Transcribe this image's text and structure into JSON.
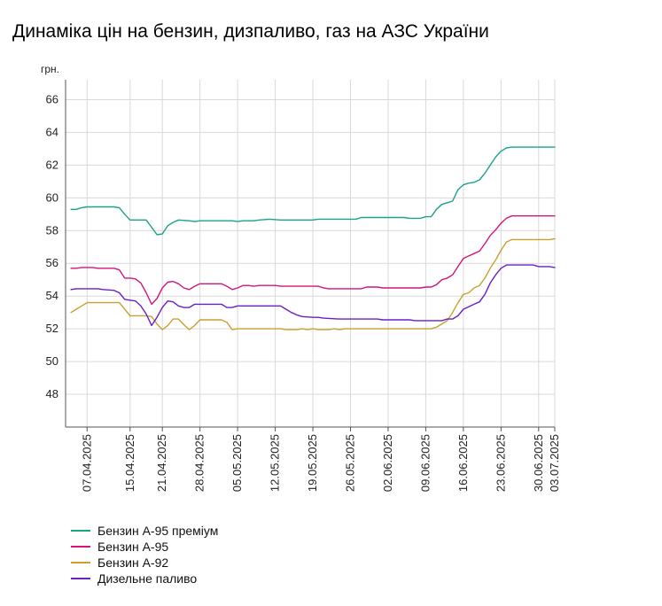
{
  "chart_data": {
    "type": "line",
    "title": "Динаміка цін на бензин, дизпаливо, газ на АЗС України",
    "ylabel": "грн.",
    "xlabel": "",
    "ylim": [
      46,
      67
    ],
    "yticks": [
      48,
      50,
      52,
      54,
      56,
      58,
      60,
      62,
      64,
      66
    ],
    "x_range": [
      "2025-04-03",
      "2025-07-03"
    ],
    "xtick_labels": [
      "07.04.2025",
      "15.04.2025",
      "21.04.2025",
      "28.04.2025",
      "05.05.2025",
      "12.05.2025",
      "19.05.2025",
      "26.05.2025",
      "02.06.2025",
      "09.06.2025",
      "16.06.2025",
      "23.06.2025",
      "30.06.2025",
      "03.07.2025"
    ],
    "xtick_dates": [
      "2025-04-07",
      "2025-04-15",
      "2025-04-21",
      "2025-04-28",
      "2025-05-05",
      "2025-05-12",
      "2025-05-19",
      "2025-05-26",
      "2025-06-02",
      "2025-06-09",
      "2025-06-16",
      "2025-06-23",
      "2025-06-30",
      "2025-07-03"
    ],
    "grid": true,
    "legend_position": "bottom-left",
    "series": [
      {
        "name": "Бензин А-95 преміум",
        "color": "#1aa388",
        "points": [
          [
            "2025-04-04",
            59.3
          ],
          [
            "2025-04-05",
            59.3
          ],
          [
            "2025-04-06",
            59.4
          ],
          [
            "2025-04-07",
            59.45
          ],
          [
            "2025-04-12",
            59.45
          ],
          [
            "2025-04-13",
            59.4
          ],
          [
            "2025-04-14",
            59.0
          ],
          [
            "2025-04-15",
            58.65
          ],
          [
            "2025-04-18",
            58.65
          ],
          [
            "2025-04-19",
            58.2
          ],
          [
            "2025-04-20",
            57.75
          ],
          [
            "2025-04-21",
            57.8
          ],
          [
            "2025-04-22",
            58.3
          ],
          [
            "2025-04-23",
            58.5
          ],
          [
            "2025-04-24",
            58.65
          ],
          [
            "2025-04-26",
            58.6
          ],
          [
            "2025-04-27",
            58.55
          ],
          [
            "2025-04-28",
            58.6
          ],
          [
            "2025-05-04",
            58.6
          ],
          [
            "2025-05-05",
            58.55
          ],
          [
            "2025-05-06",
            58.6
          ],
          [
            "2025-05-08",
            58.6
          ],
          [
            "2025-05-09",
            58.65
          ],
          [
            "2025-05-11",
            58.7
          ],
          [
            "2025-05-13",
            58.65
          ],
          [
            "2025-05-19",
            58.65
          ],
          [
            "2025-05-20",
            58.7
          ],
          [
            "2025-05-27",
            58.7
          ],
          [
            "2025-05-28",
            58.8
          ],
          [
            "2025-06-05",
            58.8
          ],
          [
            "2025-06-06",
            58.75
          ],
          [
            "2025-06-08",
            58.75
          ],
          [
            "2025-06-09",
            58.85
          ],
          [
            "2025-06-10",
            58.85
          ],
          [
            "2025-06-11",
            59.3
          ],
          [
            "2025-06-12",
            59.6
          ],
          [
            "2025-06-14",
            59.8
          ],
          [
            "2025-06-15",
            60.5
          ],
          [
            "2025-06-16",
            60.8
          ],
          [
            "2025-06-17",
            60.9
          ],
          [
            "2025-06-18",
            60.95
          ],
          [
            "2025-06-19",
            61.1
          ],
          [
            "2025-06-20",
            61.5
          ],
          [
            "2025-06-21",
            62.0
          ],
          [
            "2025-06-22",
            62.5
          ],
          [
            "2025-06-23",
            62.85
          ],
          [
            "2025-06-24",
            63.05
          ],
          [
            "2025-06-25",
            63.1
          ],
          [
            "2025-07-03",
            63.1
          ]
        ]
      },
      {
        "name": "Бензин А-95",
        "color": "#d4157c",
        "points": [
          [
            "2025-04-04",
            55.7
          ],
          [
            "2025-04-05",
            55.7
          ],
          [
            "2025-04-06",
            55.75
          ],
          [
            "2025-04-08",
            55.75
          ],
          [
            "2025-04-09",
            55.7
          ],
          [
            "2025-04-12",
            55.7
          ],
          [
            "2025-04-13",
            55.6
          ],
          [
            "2025-04-14",
            55.1
          ],
          [
            "2025-04-15",
            55.1
          ],
          [
            "2025-04-16",
            55.05
          ],
          [
            "2025-04-17",
            54.8
          ],
          [
            "2025-04-18",
            54.2
          ],
          [
            "2025-04-19",
            53.5
          ],
          [
            "2025-04-20",
            53.85
          ],
          [
            "2025-04-21",
            54.5
          ],
          [
            "2025-04-22",
            54.85
          ],
          [
            "2025-04-23",
            54.9
          ],
          [
            "2025-04-24",
            54.75
          ],
          [
            "2025-04-25",
            54.5
          ],
          [
            "2025-04-26",
            54.4
          ],
          [
            "2025-04-27",
            54.6
          ],
          [
            "2025-04-28",
            54.75
          ],
          [
            "2025-05-02",
            54.75
          ],
          [
            "2025-05-03",
            54.6
          ],
          [
            "2025-05-04",
            54.4
          ],
          [
            "2025-05-05",
            54.5
          ],
          [
            "2025-05-06",
            54.65
          ],
          [
            "2025-05-07",
            54.65
          ],
          [
            "2025-05-08",
            54.6
          ],
          [
            "2025-05-09",
            54.65
          ],
          [
            "2025-05-12",
            54.65
          ],
          [
            "2025-05-13",
            54.6
          ],
          [
            "2025-05-20",
            54.6
          ],
          [
            "2025-05-21",
            54.5
          ],
          [
            "2025-05-22",
            54.45
          ],
          [
            "2025-05-28",
            54.45
          ],
          [
            "2025-05-29",
            54.55
          ],
          [
            "2025-05-31",
            54.55
          ],
          [
            "2025-06-01",
            54.5
          ],
          [
            "2025-06-08",
            54.5
          ],
          [
            "2025-06-09",
            54.55
          ],
          [
            "2025-06-10",
            54.55
          ],
          [
            "2025-06-11",
            54.7
          ],
          [
            "2025-06-12",
            55.0
          ],
          [
            "2025-06-13",
            55.1
          ],
          [
            "2025-06-14",
            55.3
          ],
          [
            "2025-06-15",
            55.8
          ],
          [
            "2025-06-16",
            56.3
          ],
          [
            "2025-06-17",
            56.45
          ],
          [
            "2025-06-18",
            56.6
          ],
          [
            "2025-06-19",
            56.75
          ],
          [
            "2025-06-20",
            57.2
          ],
          [
            "2025-06-21",
            57.7
          ],
          [
            "2025-06-22",
            58.05
          ],
          [
            "2025-06-23",
            58.45
          ],
          [
            "2025-06-24",
            58.75
          ],
          [
            "2025-06-25",
            58.9
          ],
          [
            "2025-07-03",
            58.9
          ]
        ]
      },
      {
        "name": "Бензин А-92",
        "color": "#c9a12e",
        "points": [
          [
            "2025-04-04",
            53.0
          ],
          [
            "2025-04-05",
            53.2
          ],
          [
            "2025-04-06",
            53.4
          ],
          [
            "2025-04-07",
            53.6
          ],
          [
            "2025-04-13",
            53.6
          ],
          [
            "2025-04-14",
            53.2
          ],
          [
            "2025-04-15",
            52.8
          ],
          [
            "2025-04-18",
            52.8
          ],
          [
            "2025-04-19",
            52.75
          ],
          [
            "2025-04-20",
            52.3
          ],
          [
            "2025-04-21",
            51.95
          ],
          [
            "2025-04-22",
            52.2
          ],
          [
            "2025-04-23",
            52.6
          ],
          [
            "2025-04-24",
            52.6
          ],
          [
            "2025-04-25",
            52.25
          ],
          [
            "2025-04-26",
            51.95
          ],
          [
            "2025-04-27",
            52.2
          ],
          [
            "2025-04-28",
            52.55
          ],
          [
            "2025-05-02",
            52.55
          ],
          [
            "2025-05-03",
            52.4
          ],
          [
            "2025-05-04",
            51.95
          ],
          [
            "2025-05-05",
            52.0
          ],
          [
            "2025-05-13",
            52.0
          ],
          [
            "2025-05-14",
            51.95
          ],
          [
            "2025-05-16",
            51.95
          ],
          [
            "2025-05-17",
            52.0
          ],
          [
            "2025-05-18",
            51.95
          ],
          [
            "2025-05-19",
            52.0
          ],
          [
            "2025-05-20",
            51.95
          ],
          [
            "2025-05-22",
            51.95
          ],
          [
            "2025-05-23",
            52.0
          ],
          [
            "2025-05-24",
            51.95
          ],
          [
            "2025-05-25",
            52.0
          ],
          [
            "2025-06-10",
            52.0
          ],
          [
            "2025-06-11",
            52.1
          ],
          [
            "2025-06-12",
            52.3
          ],
          [
            "2025-06-13",
            52.5
          ],
          [
            "2025-06-14",
            53.0
          ],
          [
            "2025-06-15",
            53.6
          ],
          [
            "2025-06-16",
            54.1
          ],
          [
            "2025-06-17",
            54.2
          ],
          [
            "2025-06-18",
            54.5
          ],
          [
            "2025-06-19",
            54.65
          ],
          [
            "2025-06-20",
            55.1
          ],
          [
            "2025-06-21",
            55.7
          ],
          [
            "2025-06-22",
            56.2
          ],
          [
            "2025-06-23",
            56.8
          ],
          [
            "2025-06-24",
            57.3
          ],
          [
            "2025-06-25",
            57.45
          ],
          [
            "2025-07-02",
            57.45
          ],
          [
            "2025-07-03",
            57.5
          ]
        ]
      },
      {
        "name": "Дизельне паливо",
        "color": "#6a1fc9",
        "points": [
          [
            "2025-04-04",
            54.4
          ],
          [
            "2025-04-05",
            54.45
          ],
          [
            "2025-04-09",
            54.45
          ],
          [
            "2025-04-10",
            54.4
          ],
          [
            "2025-04-12",
            54.35
          ],
          [
            "2025-04-13",
            54.2
          ],
          [
            "2025-04-14",
            53.8
          ],
          [
            "2025-04-15",
            53.75
          ],
          [
            "2025-04-16",
            53.7
          ],
          [
            "2025-04-17",
            53.4
          ],
          [
            "2025-04-18",
            52.9
          ],
          [
            "2025-04-19",
            52.2
          ],
          [
            "2025-04-20",
            52.7
          ],
          [
            "2025-04-21",
            53.3
          ],
          [
            "2025-04-22",
            53.7
          ],
          [
            "2025-04-23",
            53.65
          ],
          [
            "2025-04-24",
            53.4
          ],
          [
            "2025-04-25",
            53.3
          ],
          [
            "2025-04-26",
            53.3
          ],
          [
            "2025-04-27",
            53.5
          ],
          [
            "2025-05-02",
            53.5
          ],
          [
            "2025-05-03",
            53.3
          ],
          [
            "2025-05-04",
            53.3
          ],
          [
            "2025-05-05",
            53.4
          ],
          [
            "2025-05-13",
            53.4
          ],
          [
            "2025-05-14",
            53.2
          ],
          [
            "2025-05-15",
            53.0
          ],
          [
            "2025-05-16",
            52.85
          ],
          [
            "2025-05-17",
            52.75
          ],
          [
            "2025-05-19",
            52.7
          ],
          [
            "2025-05-20",
            52.7
          ],
          [
            "2025-05-21",
            52.65
          ],
          [
            "2025-05-24",
            52.6
          ],
          [
            "2025-05-31",
            52.6
          ],
          [
            "2025-06-01",
            52.55
          ],
          [
            "2025-06-06",
            52.55
          ],
          [
            "2025-06-07",
            52.5
          ],
          [
            "2025-06-12",
            52.5
          ],
          [
            "2025-06-13",
            52.6
          ],
          [
            "2025-06-14",
            52.6
          ],
          [
            "2025-06-15",
            52.8
          ],
          [
            "2025-06-16",
            53.2
          ],
          [
            "2025-06-17",
            53.35
          ],
          [
            "2025-06-18",
            53.5
          ],
          [
            "2025-06-19",
            53.65
          ],
          [
            "2025-06-20",
            54.1
          ],
          [
            "2025-06-21",
            54.8
          ],
          [
            "2025-06-22",
            55.3
          ],
          [
            "2025-06-23",
            55.7
          ],
          [
            "2025-06-24",
            55.9
          ],
          [
            "2025-06-29",
            55.9
          ],
          [
            "2025-06-30",
            55.8
          ],
          [
            "2025-07-02",
            55.8
          ],
          [
            "2025-07-03",
            55.75
          ]
        ]
      }
    ]
  }
}
